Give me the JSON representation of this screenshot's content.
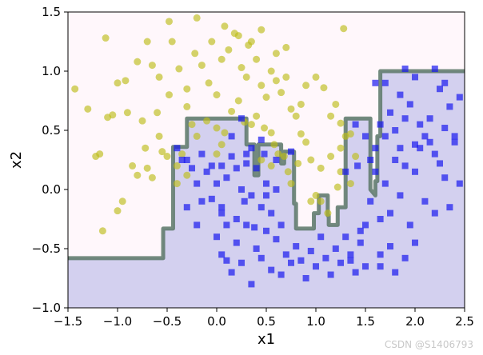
{
  "chart_data": {
    "type": "scatter",
    "title": "",
    "xlabel": "x1",
    "ylabel": "x2",
    "xlim": [
      -1.5,
      2.5
    ],
    "ylim": [
      -1.0,
      1.5
    ],
    "xticks": [
      "-1.5",
      "-1.0",
      "-0.5",
      "0.0",
      "0.5",
      "1.0",
      "1.5",
      "2.0",
      "2.5"
    ],
    "yticks": [
      "-1.0",
      "-0.5",
      "0.0",
      "0.5",
      "1.0",
      "1.5"
    ],
    "grid": false,
    "colors": {
      "region_class0": "#fff7fb",
      "region_class1": "#d3d0ef",
      "boundary": "#5b7767",
      "class0_marker": "#bdbd1a",
      "class1_marker": "#1a1af0"
    },
    "decision_boundary": [
      [
        -1.5,
        -0.58
      ],
      [
        -0.54,
        -0.58
      ],
      [
        -0.54,
        -0.33
      ],
      [
        -0.44,
        -0.33
      ],
      [
        -0.44,
        0.36
      ],
      [
        -0.3,
        0.36
      ],
      [
        -0.3,
        0.6
      ],
      [
        0.3,
        0.6
      ],
      [
        0.3,
        0.38
      ],
      [
        0.38,
        0.38
      ],
      [
        0.38,
        0.12
      ],
      [
        0.42,
        0.12
      ],
      [
        0.42,
        0.38
      ],
      [
        0.65,
        0.38
      ],
      [
        0.65,
        0.22
      ],
      [
        0.68,
        0.22
      ],
      [
        0.68,
        0.32
      ],
      [
        0.78,
        0.32
      ],
      [
        0.78,
        -0.12
      ],
      [
        0.8,
        -0.12
      ],
      [
        0.8,
        -0.33
      ],
      [
        0.98,
        -0.33
      ],
      [
        0.98,
        -0.2
      ],
      [
        1.03,
        -0.2
      ],
      [
        1.03,
        -0.05
      ],
      [
        1.12,
        -0.05
      ],
      [
        1.12,
        -0.22
      ],
      [
        1.13,
        -0.22
      ],
      [
        1.13,
        -0.3
      ],
      [
        1.22,
        -0.3
      ],
      [
        1.22,
        -0.15
      ],
      [
        1.3,
        -0.15
      ],
      [
        1.3,
        0.6
      ],
      [
        1.55,
        0.6
      ],
      [
        1.55,
        0.0
      ],
      [
        1.6,
        -0.05
      ],
      [
        1.6,
        0.07
      ],
      [
        1.62,
        0.07
      ],
      [
        1.62,
        0.45
      ],
      [
        1.65,
        0.45
      ],
      [
        1.65,
        1.0
      ],
      [
        2.5,
        1.0
      ]
    ],
    "series": [
      {
        "marker": "circle",
        "points": [
          [
            -1.43,
            0.85
          ],
          [
            -1.3,
            0.68
          ],
          [
            -1.22,
            0.28
          ],
          [
            -1.18,
            0.3
          ],
          [
            -1.15,
            -0.35
          ],
          [
            -1.1,
            0.61
          ],
          [
            -1.05,
            0.63
          ],
          [
            -1.0,
            -0.18
          ],
          [
            -0.95,
            -0.1
          ],
          [
            -0.9,
            0.65
          ],
          [
            -0.85,
            0.2
          ],
          [
            -0.8,
            0.12
          ],
          [
            -0.75,
            0.58
          ],
          [
            -0.72,
            0.35
          ],
          [
            -0.7,
            0.18
          ],
          [
            -0.65,
            0.1
          ],
          [
            -0.6,
            0.65
          ],
          [
            -0.58,
            0.45
          ],
          [
            -0.55,
            0.32
          ],
          [
            -0.5,
            0.28
          ],
          [
            -1.12,
            1.28
          ],
          [
            -0.92,
            0.92
          ],
          [
            -0.8,
            1.08
          ],
          [
            -0.7,
            1.25
          ],
          [
            -0.58,
            0.95
          ],
          [
            -0.48,
            0.8
          ],
          [
            -0.45,
            1.25
          ],
          [
            -0.38,
            1.02
          ],
          [
            -0.3,
            0.85
          ],
          [
            -0.22,
            1.15
          ],
          [
            -0.15,
            1.05
          ],
          [
            -0.08,
            0.9
          ],
          [
            0.0,
            0.8
          ],
          [
            0.05,
            1.1
          ],
          [
            0.12,
            1.18
          ],
          [
            0.18,
            1.32
          ],
          [
            0.25,
            1.03
          ],
          [
            0.3,
            0.95
          ],
          [
            0.35,
            1.25
          ],
          [
            0.4,
            1.1
          ],
          [
            -0.48,
            1.42
          ],
          [
            -0.2,
            1.45
          ],
          [
            0.08,
            1.38
          ],
          [
            0.22,
            1.3
          ],
          [
            0.32,
            1.22
          ],
          [
            0.45,
            0.88
          ],
          [
            0.5,
            0.78
          ],
          [
            0.55,
            1.0
          ],
          [
            0.6,
            0.92
          ],
          [
            0.65,
            0.82
          ],
          [
            0.7,
            0.95
          ],
          [
            0.75,
            0.68
          ],
          [
            0.8,
            0.62
          ],
          [
            0.85,
            0.72
          ],
          [
            0.9,
            0.88
          ],
          [
            1.0,
            0.95
          ],
          [
            1.08,
            0.86
          ],
          [
            1.15,
            0.62
          ],
          [
            1.2,
            0.72
          ],
          [
            1.25,
            0.56
          ],
          [
            1.25,
            0.35
          ],
          [
            1.3,
            0.45
          ],
          [
            1.35,
            0.47
          ],
          [
            1.28,
            1.36
          ],
          [
            1.15,
            0.28
          ],
          [
            1.05,
            0.18
          ],
          [
            0.95,
            0.25
          ],
          [
            0.9,
            0.4
          ],
          [
            0.85,
            0.47
          ],
          [
            0.82,
            0.22
          ],
          [
            -0.3,
            0.7
          ],
          [
            -0.25,
            0.55
          ],
          [
            -0.2,
            0.45
          ],
          [
            -0.1,
            0.58
          ],
          [
            0.0,
            0.52
          ],
          [
            0.08,
            0.48
          ],
          [
            0.15,
            0.66
          ],
          [
            0.22,
            0.75
          ],
          [
            0.28,
            0.57
          ],
          [
            0.35,
            0.55
          ],
          [
            0.4,
            0.62
          ],
          [
            0.48,
            0.52
          ],
          [
            0.55,
            0.48
          ],
          [
            0.58,
            0.38
          ],
          [
            0.62,
            0.3
          ],
          [
            0.68,
            0.28
          ],
          [
            0.72,
            0.15
          ],
          [
            0.75,
            0.05
          ],
          [
            0.55,
            0.2
          ],
          [
            0.45,
            0.25
          ],
          [
            -0.35,
            0.3
          ],
          [
            -0.4,
            0.2
          ],
          [
            -0.3,
            0.12
          ],
          [
            -0.4,
            0.05
          ],
          [
            0.0,
            0.3
          ],
          [
            0.05,
            0.38
          ],
          [
            0.95,
            -0.1
          ],
          [
            1.0,
            -0.05
          ],
          [
            1.05,
            -0.1
          ],
          [
            1.12,
            -0.2
          ],
          [
            1.22,
            0.02
          ],
          [
            1.25,
            0.15
          ],
          [
            1.35,
            0.05
          ],
          [
            1.4,
            0.28
          ],
          [
            0.6,
            1.15
          ],
          [
            0.7,
            1.2
          ],
          [
            -0.05,
            1.25
          ],
          [
            0.45,
            1.35
          ],
          [
            -0.65,
            1.05
          ],
          [
            -1.0,
            0.9
          ]
        ]
      },
      {
        "marker": "square",
        "points": [
          [
            -0.3,
            0.25
          ],
          [
            -0.25,
            0.18
          ],
          [
            -0.2,
            0.05
          ],
          [
            -0.15,
            -0.1
          ],
          [
            -0.1,
            0.15
          ],
          [
            -0.05,
            0.2
          ],
          [
            0.0,
            0.05
          ],
          [
            0.05,
            -0.15
          ],
          [
            0.1,
            0.1
          ],
          [
            0.15,
            0.28
          ],
          [
            0.2,
            0.18
          ],
          [
            0.25,
            0.0
          ],
          [
            0.3,
            0.22
          ],
          [
            0.35,
            -0.05
          ],
          [
            0.4,
            0.18
          ],
          [
            0.45,
            -0.15
          ],
          [
            0.5,
            0.05
          ],
          [
            0.55,
            -0.2
          ],
          [
            0.6,
            0.0
          ],
          [
            0.65,
            -0.3
          ],
          [
            0.0,
            -0.4
          ],
          [
            0.05,
            -0.55
          ],
          [
            0.1,
            -0.6
          ],
          [
            0.15,
            -0.7
          ],
          [
            0.2,
            -0.45
          ],
          [
            0.25,
            -0.62
          ],
          [
            0.3,
            -0.3
          ],
          [
            0.35,
            -0.8
          ],
          [
            0.4,
            -0.5
          ],
          [
            0.45,
            -0.58
          ],
          [
            0.5,
            -0.35
          ],
          [
            0.55,
            -0.68
          ],
          [
            0.6,
            -0.42
          ],
          [
            0.65,
            -0.72
          ],
          [
            0.7,
            -0.55
          ],
          [
            0.75,
            -0.62
          ],
          [
            0.8,
            -0.48
          ],
          [
            0.85,
            -0.6
          ],
          [
            0.9,
            -0.75
          ],
          [
            0.95,
            -0.52
          ],
          [
            1.0,
            -0.65
          ],
          [
            1.05,
            -0.4
          ],
          [
            1.1,
            -0.58
          ],
          [
            1.15,
            -0.72
          ],
          [
            1.2,
            -0.5
          ],
          [
            1.25,
            -0.62
          ],
          [
            1.3,
            -0.4
          ],
          [
            1.35,
            -0.55
          ],
          [
            1.4,
            -0.7
          ],
          [
            1.45,
            -0.45
          ],
          [
            1.5,
            -0.3
          ],
          [
            1.55,
            -0.1
          ],
          [
            1.6,
            0.15
          ],
          [
            1.65,
            -0.25
          ],
          [
            1.7,
            0.05
          ],
          [
            1.75,
            -0.2
          ],
          [
            1.8,
            0.25
          ],
          [
            1.85,
            -0.05
          ],
          [
            1.9,
            0.2
          ],
          [
            1.95,
            -0.3
          ],
          [
            2.0,
            0.15
          ],
          [
            2.05,
            0.35
          ],
          [
            2.1,
            -0.1
          ],
          [
            2.15,
            0.4
          ],
          [
            2.2,
            -0.2
          ],
          [
            2.25,
            0.22
          ],
          [
            2.3,
            0.1
          ],
          [
            2.35,
            -0.15
          ],
          [
            2.4,
            0.45
          ],
          [
            2.45,
            0.05
          ],
          [
            1.55,
            0.25
          ],
          [
            1.6,
            0.35
          ],
          [
            1.65,
            0.55
          ],
          [
            1.7,
            0.45
          ],
          [
            1.75,
            0.65
          ],
          [
            1.8,
            0.5
          ],
          [
            1.85,
            0.35
          ],
          [
            1.9,
            0.6
          ],
          [
            1.95,
            0.72
          ],
          [
            2.0,
            0.38
          ],
          [
            2.05,
            0.55
          ],
          [
            2.1,
            0.45
          ],
          [
            2.15,
            0.6
          ],
          [
            2.2,
            0.3
          ],
          [
            2.25,
            0.85
          ],
          [
            2.3,
            0.52
          ],
          [
            2.35,
            0.7
          ],
          [
            2.4,
            0.4
          ],
          [
            2.45,
            0.78
          ],
          [
            2.0,
            0.95
          ],
          [
            1.85,
            0.8
          ],
          [
            1.7,
            0.9
          ],
          [
            1.6,
            0.9
          ],
          [
            1.9,
            1.02
          ],
          [
            2.2,
            1.02
          ],
          [
            2.3,
            0.9
          ],
          [
            -0.4,
            0.35
          ],
          [
            -0.35,
            0.25
          ],
          [
            -0.3,
            -0.15
          ],
          [
            -0.2,
            -0.3
          ],
          [
            0.35,
            0.35
          ],
          [
            0.48,
            0.3
          ],
          [
            0.6,
            0.25
          ],
          [
            0.75,
            0.32
          ],
          [
            0.05,
            0.2
          ],
          [
            -0.15,
            0.3
          ],
          [
            0.15,
            0.45
          ],
          [
            0.25,
            0.6
          ],
          [
            0.3,
            0.3
          ],
          [
            0.45,
            0.42
          ],
          [
            1.3,
            0.15
          ],
          [
            1.42,
            0.2
          ],
          [
            1.5,
            0.45
          ],
          [
            1.4,
            0.55
          ],
          [
            1.45,
            -0.35
          ],
          [
            1.35,
            -0.6
          ],
          [
            1.5,
            -0.65
          ],
          [
            1.65,
            -0.55
          ],
          [
            1.75,
            -0.48
          ],
          [
            1.9,
            -0.58
          ],
          [
            2.0,
            -0.45
          ],
          [
            1.8,
            -0.7
          ],
          [
            1.65,
            -0.65
          ],
          [
            0.05,
            -0.2
          ],
          [
            -0.05,
            -0.08
          ],
          [
            0.1,
            -0.3
          ],
          [
            0.2,
            -0.25
          ],
          [
            0.28,
            -0.1
          ],
          [
            0.38,
            -0.32
          ],
          [
            0.5,
            -0.05
          ]
        ]
      }
    ]
  },
  "watermark": "CSDN @S1406793"
}
